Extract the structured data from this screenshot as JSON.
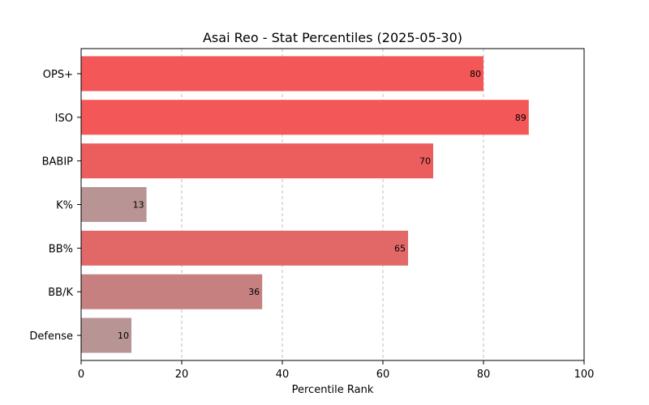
{
  "chart_data": {
    "type": "bar",
    "orientation": "horizontal",
    "title": "Asai Reo - Stat Percentiles (2025-05-30)",
    "xlabel": "Percentile Rank",
    "ylabel": "",
    "xlim": [
      0,
      100
    ],
    "xticks": [
      "0",
      "20",
      "40",
      "60",
      "80",
      "100"
    ],
    "grid": "vertical dashed",
    "categories": [
      "OPS+",
      "ISO",
      "BABIP",
      "K%",
      "BB%",
      "BB/K",
      "Defense"
    ],
    "values": [
      80,
      89,
      70,
      13,
      65,
      36,
      10
    ],
    "colors": [
      "#f45757",
      "#f45757",
      "#ec5e5e",
      "#b89494",
      "#e26868",
      "#c68080",
      "#b89494"
    ]
  }
}
